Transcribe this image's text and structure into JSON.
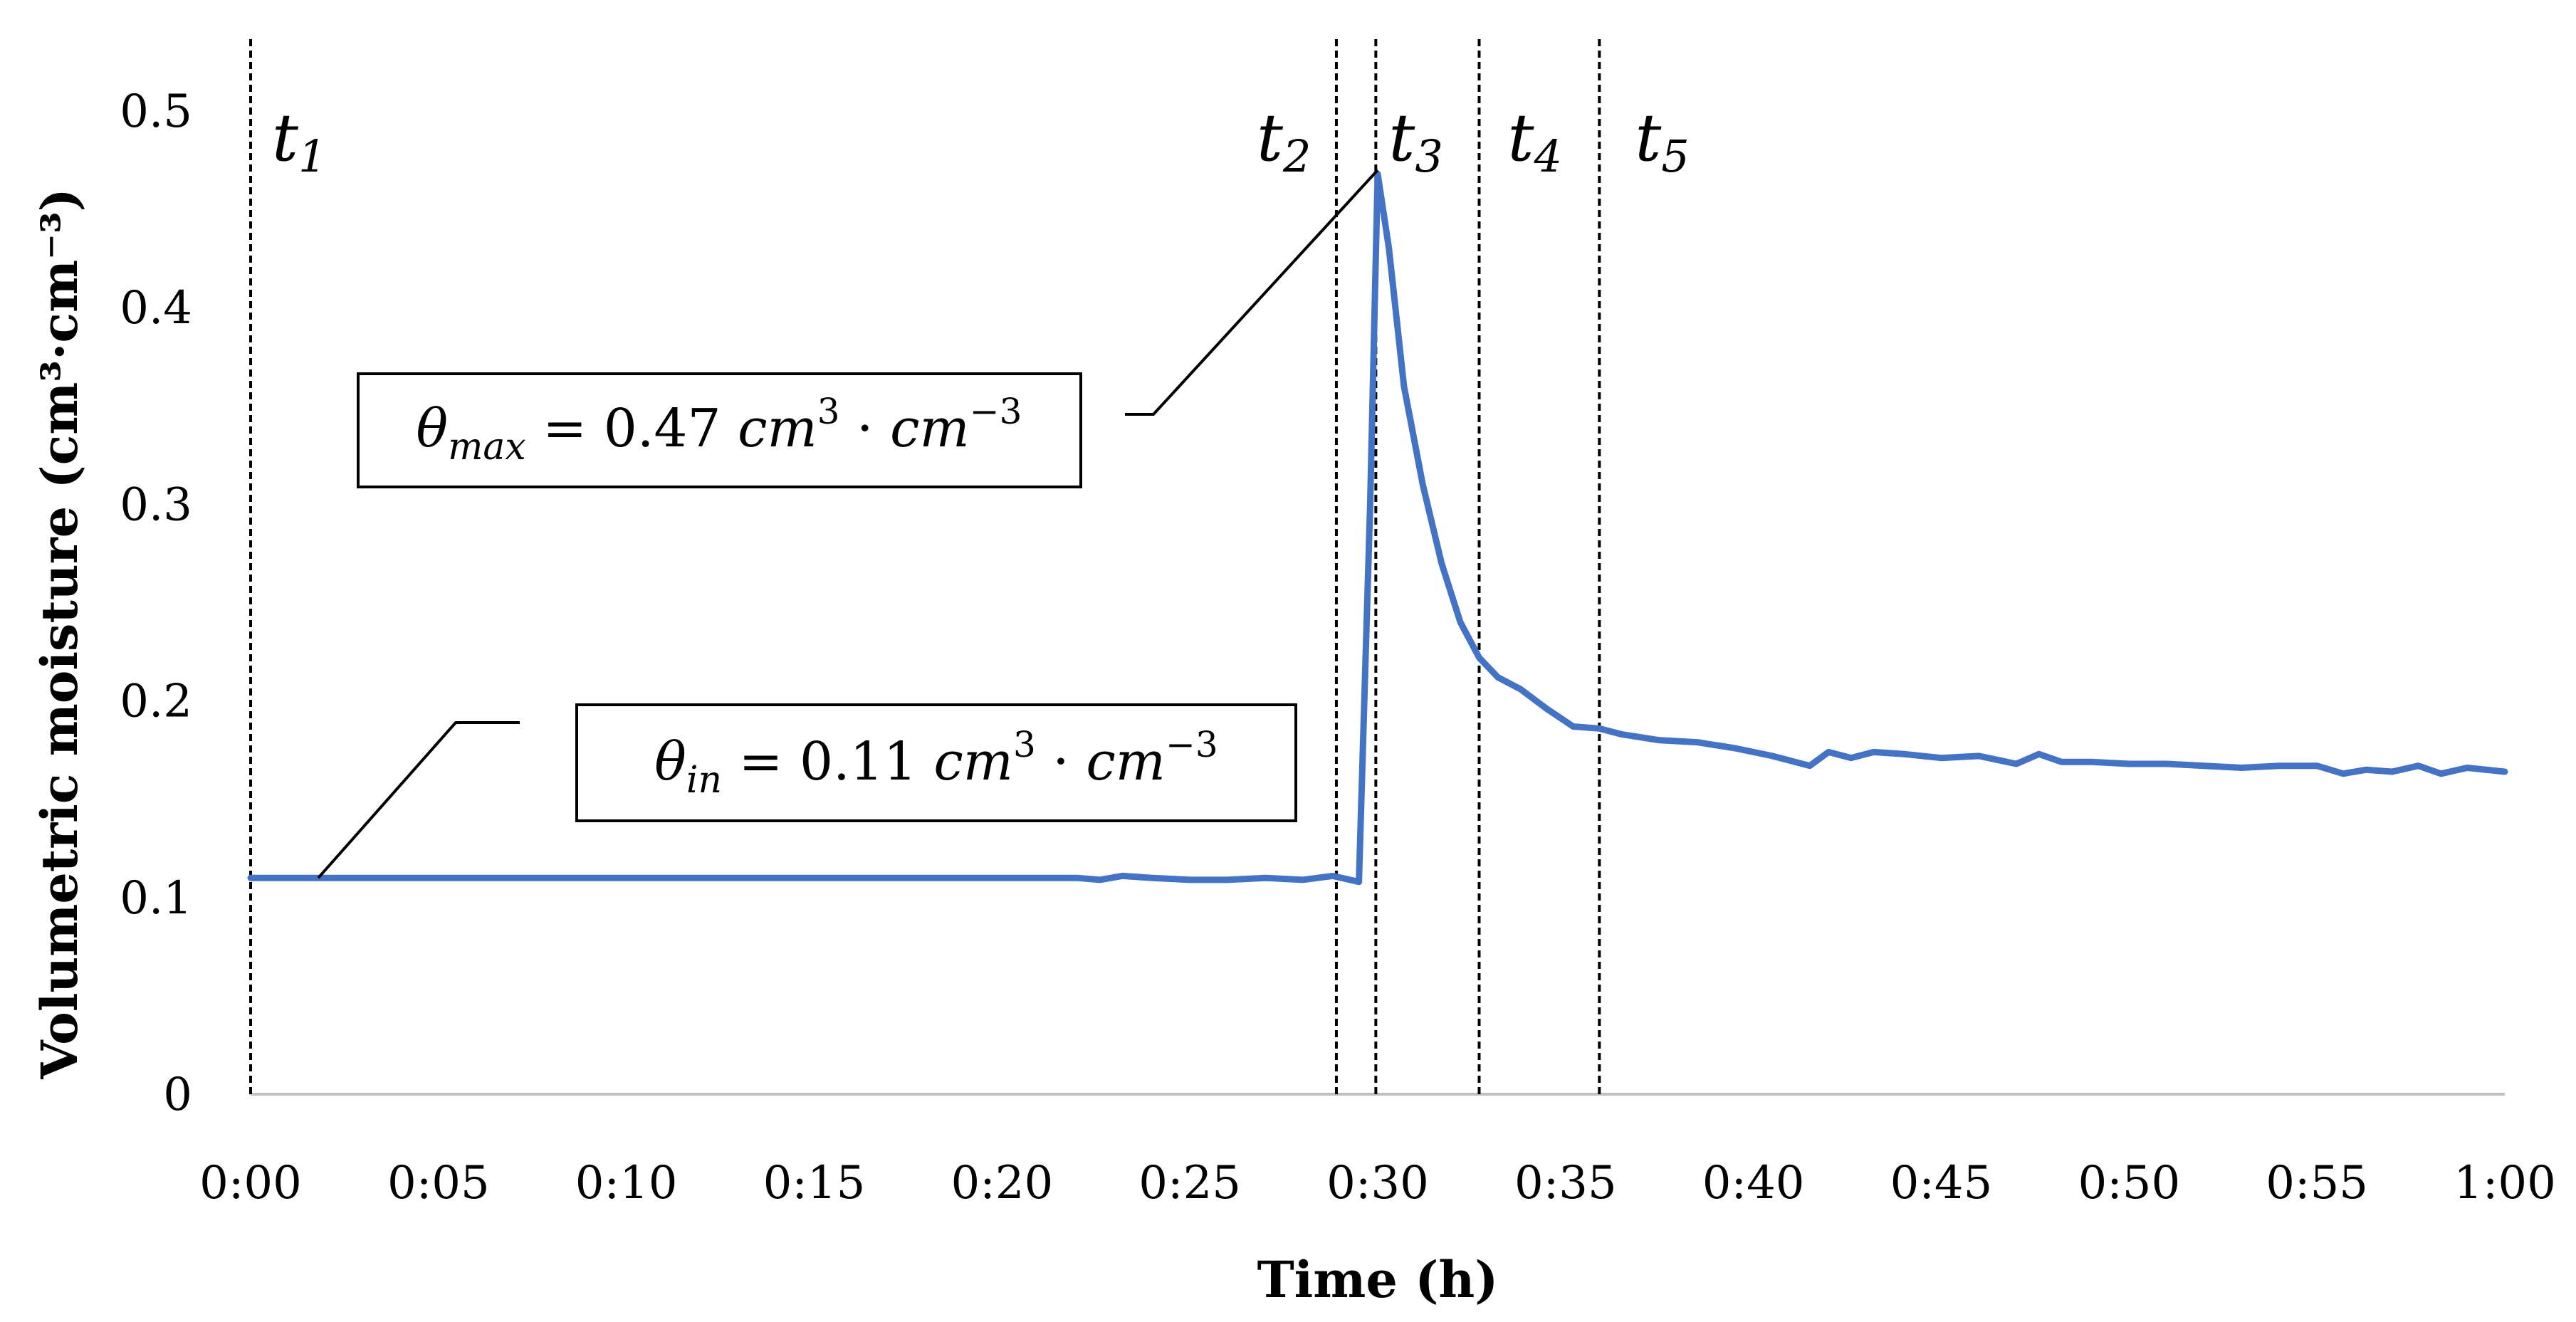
{
  "chart_data": {
    "type": "line",
    "xlabel": "Time (h)",
    "ylabel": "Volumetric moisture (cm³·cm⁻³)",
    "xlim": [
      0,
      60
    ],
    "ylim": [
      0,
      0.5
    ],
    "x_tick_labels": [
      "0:00",
      "0:05",
      "0:10",
      "0:15",
      "0:20",
      "0:25",
      "0:30",
      "0:35",
      "0:40",
      "0:45",
      "0:50",
      "0:55",
      "1:00"
    ],
    "y_tick_labels": [
      "0",
      "0.1",
      "0.2",
      "0.3",
      "0.4",
      "0.5"
    ],
    "y_ticks": [
      0,
      0.1,
      0.2,
      0.3,
      0.4,
      0.5
    ],
    "line_color": "#4472C4",
    "series": [
      {
        "name": "Volumetric moisture",
        "x": [
          0,
          5,
          10,
          15,
          20,
          22,
          22.6,
          23.2,
          24,
          25,
          26,
          27,
          28,
          28.8,
          29.5,
          29.8,
          30,
          30.3,
          30.7,
          31.2,
          31.7,
          32.2,
          32.7,
          33.2,
          33.8,
          34.5,
          35.2,
          35.9,
          36.5,
          37.5,
          38.5,
          39.5,
          40.5,
          41.5,
          42,
          42.6,
          43.2,
          44,
          45,
          46,
          47,
          47.6,
          48.2,
          49,
          50,
          51,
          52,
          53,
          54,
          55,
          55.7,
          56.3,
          57,
          57.7,
          58.3,
          59,
          60
        ],
        "y": [
          0.11,
          0.11,
          0.11,
          0.11,
          0.11,
          0.11,
          0.109,
          0.111,
          0.11,
          0.109,
          0.109,
          0.11,
          0.109,
          0.111,
          0.108,
          0.3,
          0.468,
          0.43,
          0.36,
          0.31,
          0.27,
          0.24,
          0.222,
          0.212,
          0.206,
          0.196,
          0.187,
          0.186,
          0.183,
          0.18,
          0.179,
          0.176,
          0.172,
          0.167,
          0.174,
          0.171,
          0.174,
          0.173,
          0.171,
          0.172,
          0.168,
          0.173,
          0.169,
          0.169,
          0.168,
          0.168,
          0.167,
          0.166,
          0.167,
          0.167,
          0.163,
          0.165,
          0.164,
          0.167,
          0.163,
          0.166,
          0.164
        ]
      }
    ],
    "markers": [
      {
        "label": "t",
        "sub": "1",
        "x": 0
      },
      {
        "label": "t",
        "sub": "2",
        "x": 28.9
      },
      {
        "label": "t",
        "sub": "3",
        "x": 29.95
      },
      {
        "label": "t",
        "sub": "4",
        "x": 32.7
      },
      {
        "label": "t",
        "sub": "5",
        "x": 35.9
      }
    ],
    "annotations": [
      {
        "id": "theta-max",
        "symbol": "θ",
        "subscript": "max",
        "value_text": "= 0.47 ",
        "unit_text": "cm",
        "sup1": "3",
        "dot": " · ",
        "unit2_text": "cm",
        "sup2": "−3",
        "target_x": 30,
        "target_y": 0.47
      },
      {
        "id": "theta-in",
        "symbol": "θ",
        "subscript": "in",
        "value_text": "= 0.11 ",
        "unit_text": "cm",
        "sup1": "3",
        "dot": " · ",
        "unit2_text": "cm",
        "sup2": "−3",
        "target_x": 1.8,
        "target_y": 0.11
      }
    ]
  }
}
